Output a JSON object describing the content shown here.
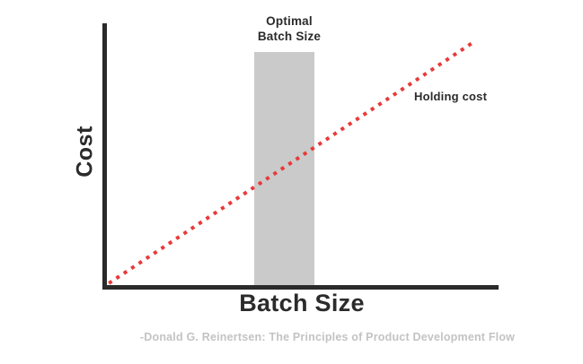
{
  "chart_data": {
    "type": "line",
    "title": "",
    "xlabel": "Batch Size",
    "ylabel": "Cost",
    "axis_ranges": {
      "x": [
        0,
        100
      ],
      "y": [
        0,
        100
      ]
    },
    "grid": false,
    "legend": "inline-label",
    "series": [
      {
        "name": "Holding cost",
        "style": "dotted",
        "color": "#e83a3a",
        "x": [
          0.5,
          93.6
        ],
        "y": [
          0.7,
          92.8
        ],
        "description": "Linear increasing holding cost as batch size grows"
      }
    ],
    "annotations": [
      {
        "type": "vertical-band",
        "label": "Optimal Batch Size",
        "x_start": 37.6,
        "x_end": 53.0,
        "y_bottom": 0,
        "y_top": 89.0,
        "color": "#cacaca"
      }
    ]
  },
  "labels": {
    "y_axis": "Cost",
    "x_axis": "Batch Size",
    "band_label_line1": "Optimal",
    "band_label_line2": "Batch Size",
    "line_label": "Holding cost",
    "attribution": "-Donald G. Reinertsen: The Principles of Product Development Flow"
  },
  "colors": {
    "background": "#ffffff",
    "axis": "#2a2a2a",
    "band": "#cacaca",
    "line": "#e83a3a",
    "text_dark": "#2b2b2b",
    "attribution_text": "#c3c3c3"
  }
}
